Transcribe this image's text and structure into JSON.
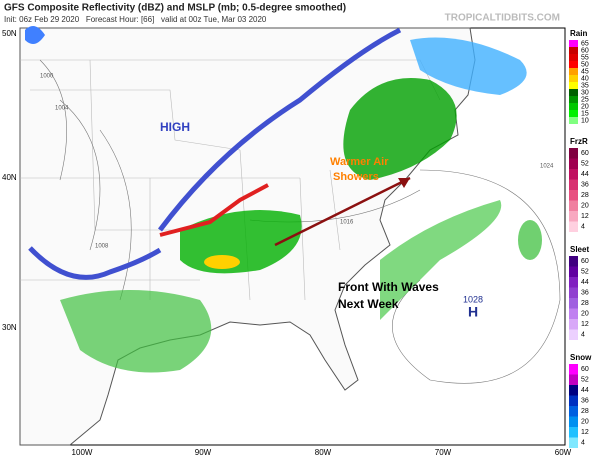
{
  "header": {
    "title": "GFS Composite Reflectivity (dBZ) and MSLP (mb; 0.5-degree smoothed)",
    "subtitle": "Init: 06z Feb 29 2020   Forecast Hour: [66]   valid at 00z Tue, Mar 03 2020",
    "site": "TROPICALTIDBITS.COM"
  },
  "annotations": {
    "high": "HIGH",
    "warm": [
      "Warmer Air",
      "Showers"
    ],
    "front": [
      "Front With Waves",
      "Next Week"
    ],
    "pressure": "1028",
    "center": "H"
  },
  "latitudes": [
    "50N",
    "40N",
    "30N"
  ],
  "longitudes": [
    "100W",
    "90W",
    "80W",
    "70W",
    "60W"
  ],
  "isobars": [
    "1000",
    "1004",
    "1008",
    "1016",
    "1024"
  ],
  "legends": [
    {
      "name": "Rain",
      "labels": [
        65,
        60,
        55,
        50,
        45,
        40,
        35,
        30,
        25,
        20,
        15,
        10
      ],
      "colors": [
        "#ff00ff",
        "#c80000",
        "#e00000",
        "#ff0000",
        "#ffa000",
        "#ffd000",
        "#ffff00",
        "#006000",
        "#009600",
        "#00c800",
        "#00f000",
        "#80ff80"
      ]
    },
    {
      "name": "FrzR",
      "labels": [
        60,
        52,
        44,
        36,
        28,
        20,
        12,
        4
      ],
      "colors": [
        "#800040",
        "#a00050",
        "#c01060",
        "#d83070",
        "#e85080",
        "#f080a0",
        "#f8a8c0",
        "#ffd0e0"
      ]
    },
    {
      "name": "Sleet",
      "labels": [
        60,
        52,
        44,
        36,
        28,
        20,
        12,
        4
      ],
      "colors": [
        "#400080",
        "#6000a0",
        "#8020c0",
        "#9040d0",
        "#a060e0",
        "#c080f0",
        "#d8a8f8",
        "#ecd0ff"
      ]
    },
    {
      "name": "Snow",
      "labels": [
        60,
        52,
        44,
        36,
        28,
        20,
        12,
        4
      ],
      "colors": [
        "#ff00ff",
        "#c000c0",
        "#000080",
        "#0030c0",
        "#0060e0",
        "#0090f0",
        "#20c0ff",
        "#80e8ff"
      ]
    }
  ]
}
